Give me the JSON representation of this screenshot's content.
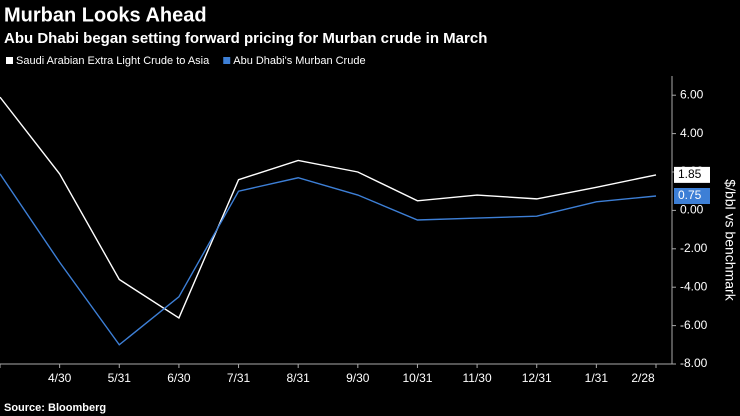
{
  "chart_data": {
    "type": "line",
    "title": "Murban Looks Ahead",
    "subtitle": "Abu Dhabi began setting forward pricing for Murban crude in March",
    "source": "Source: Bloomberg",
    "y_axis_label": "$/bbl vs benchmark",
    "categories": [
      null,
      "4/30",
      "5/31",
      "6/30",
      "7/31",
      "8/31",
      "9/30",
      "10/31",
      "11/30",
      "12/31",
      "1/31",
      "2/28"
    ],
    "series": [
      {
        "name": "Saudi Arabian Extra Light Crude to Asia",
        "color": "#ffffff",
        "values": [
          5.9,
          1.9,
          -3.6,
          -5.6,
          1.6,
          2.6,
          2.0,
          0.5,
          0.8,
          0.6,
          1.2,
          1.85
        ]
      },
      {
        "name": "Abu Dhabi's Murban Crude",
        "color": "#3d7fd6",
        "values": [
          1.9,
          -2.7,
          -7.0,
          -4.5,
          1.0,
          1.7,
          0.8,
          -0.5,
          -0.4,
          -0.3,
          0.45,
          0.75
        ]
      }
    ],
    "ylim": [
      -8,
      7
    ],
    "yticks": [
      {
        "value": -8,
        "label": "-8.00"
      },
      {
        "value": -6,
        "label": "-6.00"
      },
      {
        "value": -4,
        "label": "-4.00"
      },
      {
        "value": -2,
        "label": "-2.00"
      },
      {
        "value": 0,
        "label": "0.00"
      },
      {
        "value": 2,
        "label": "2.00"
      },
      {
        "value": 4,
        "label": "4.00"
      },
      {
        "value": 6,
        "label": "6.00"
      }
    ],
    "y_axis_side": "right",
    "grid": false
  }
}
